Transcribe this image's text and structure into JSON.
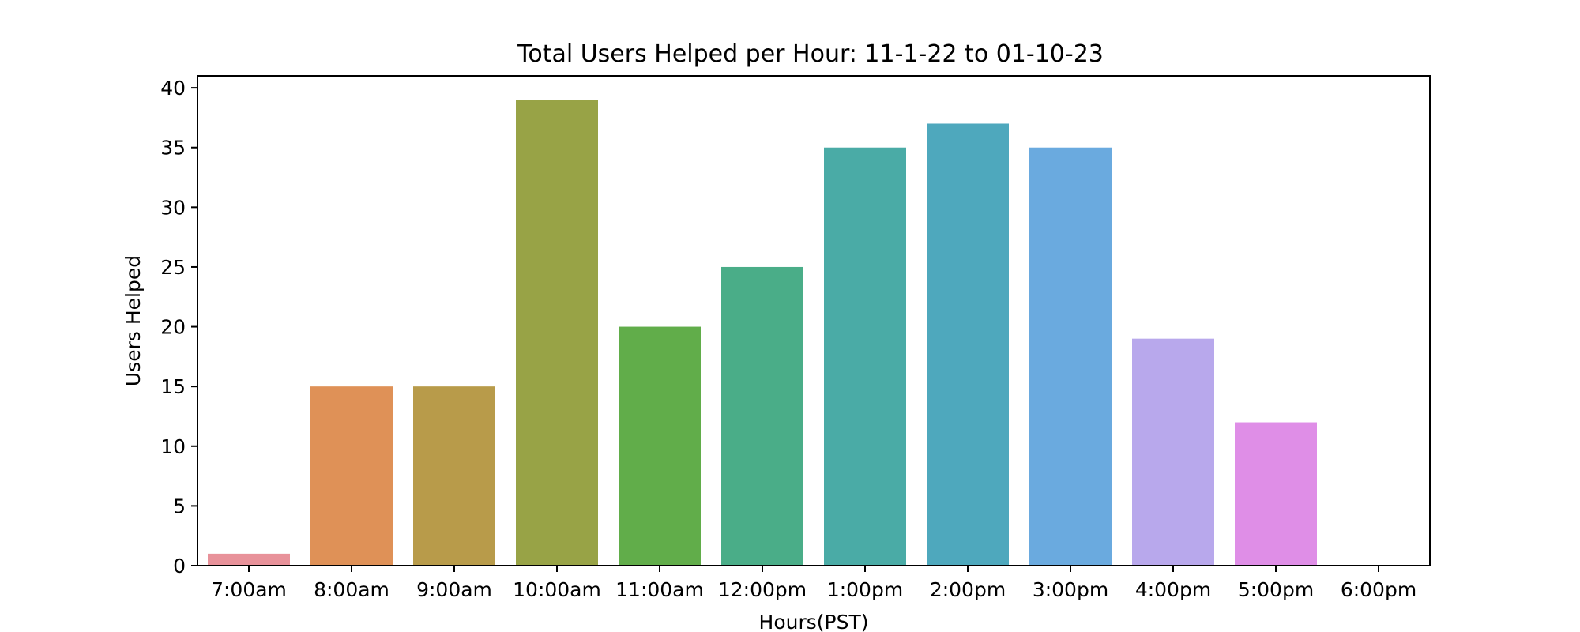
{
  "chart_data": {
    "type": "bar",
    "title": "Total Users Helped per Hour: 11-1-22 to 01-10-23",
    "xlabel": "Hours(PST)",
    "ylabel": "Users Helped",
    "categories": [
      "7:00am",
      "8:00am",
      "9:00am",
      "10:00am",
      "11:00am",
      "12:00pm",
      "1:00pm",
      "2:00pm",
      "3:00pm",
      "4:00pm",
      "5:00pm",
      "6:00pm"
    ],
    "values": [
      1,
      15,
      15,
      39,
      20,
      25,
      35,
      37,
      35,
      19,
      12,
      0
    ],
    "colors": [
      "#e8929a",
      "#df9157",
      "#b89b4a",
      "#98a346",
      "#61ad4a",
      "#4aad88",
      "#4aaba6",
      "#4ea8bd",
      "#6aaadf",
      "#b8a8ec",
      "#df8ee7",
      "#e48fbf"
    ],
    "ylim": [
      0,
      41
    ],
    "yticks": [
      0,
      5,
      10,
      15,
      20,
      25,
      30,
      35,
      40
    ],
    "grid": false,
    "legend": "none"
  }
}
